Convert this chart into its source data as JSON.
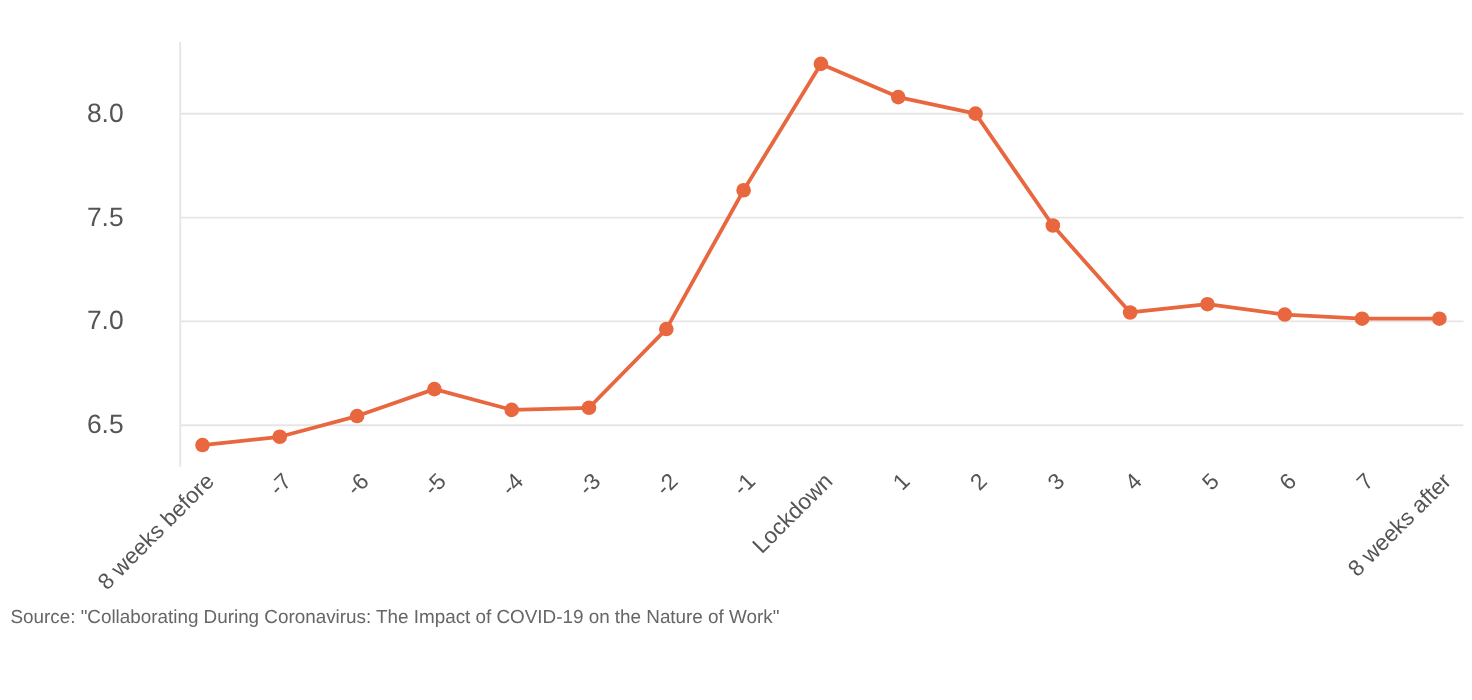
{
  "chart_data": {
    "type": "line",
    "categories": [
      "8 weeks before",
      "-7",
      "-6",
      "-5",
      "-4",
      "-3",
      "-2",
      "-1",
      "Lockdown",
      "1",
      "2",
      "3",
      "4",
      "5",
      "6",
      "7",
      "8 weeks after"
    ],
    "series": [
      {
        "color": "#e8673f",
        "values": [
          6.4,
          6.44,
          6.54,
          6.67,
          6.57,
          6.58,
          6.96,
          7.63,
          8.24,
          8.08,
          8.0,
          7.46,
          7.04,
          7.08,
          7.03,
          7.01,
          7.01
        ]
      }
    ],
    "ylim": [
      6.3,
      8.35
    ],
    "yticks": [
      6.5,
      {
        "value": 7,
        "label": "7.0"
      },
      7.5,
      {
        "value": 8,
        "label": "8.0"
      }
    ],
    "grid": "y",
    "marker": "circle",
    "line_style": "solid",
    "legend": false,
    "annotations": [
      "Source: \"Collaborating During Coronavirus: The Impact of COVID-19 on the Nature of Work\""
    ]
  }
}
